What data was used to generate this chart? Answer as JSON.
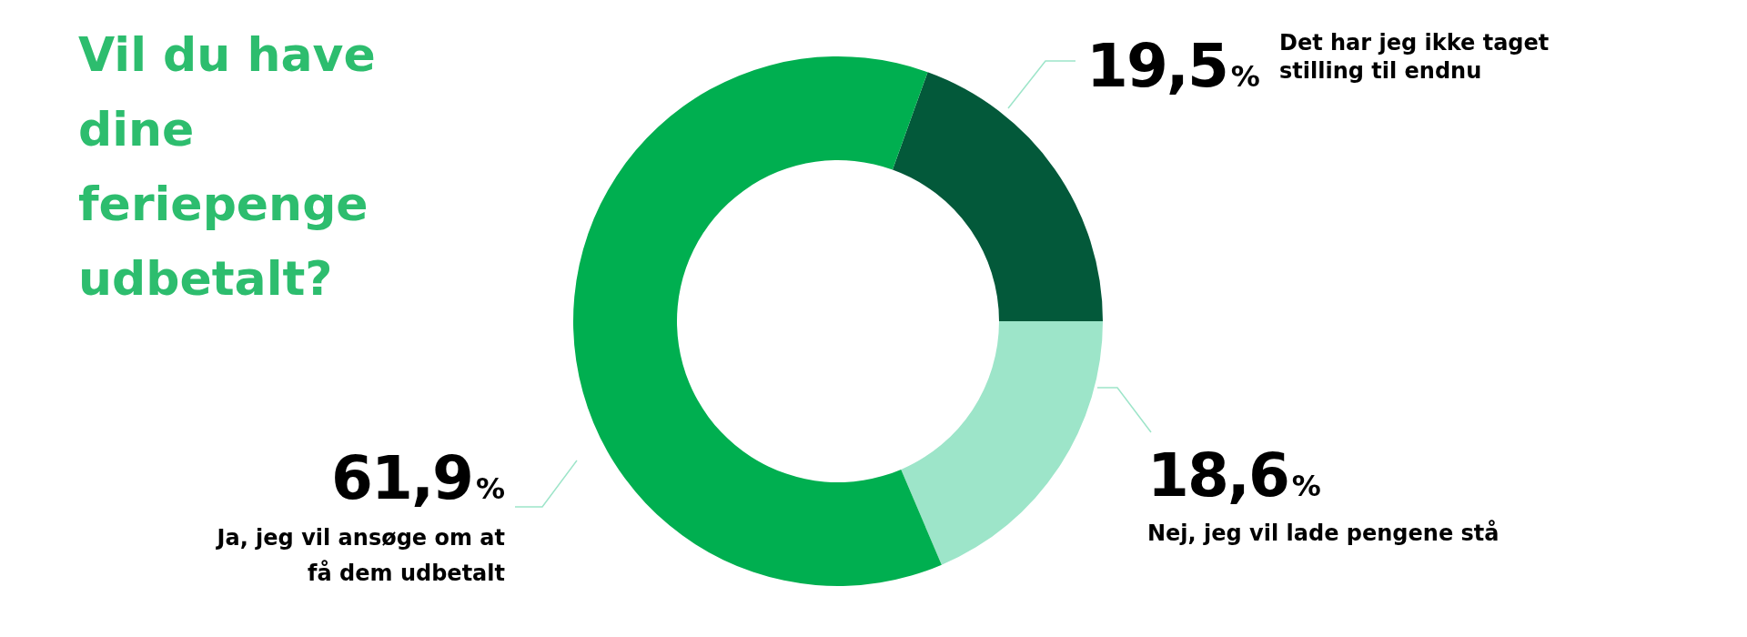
{
  "chart_data": {
    "type": "donut",
    "title": "Vil du have dine feriepenge udbetalt?",
    "categories": [
      "Det har jeg ikke taget stilling til endnu",
      "Nej, jeg vil lade pengene stå",
      "Ja, jeg vil ansøge om at få dem udbetalt"
    ],
    "values": [
      19.5,
      18.6,
      61.9
    ],
    "colors": [
      "#03593a",
      "#9de5c9",
      "#00af50"
    ],
    "value_labels": [
      "19,5%",
      "18,6%",
      "61,9%"
    ]
  }
}
